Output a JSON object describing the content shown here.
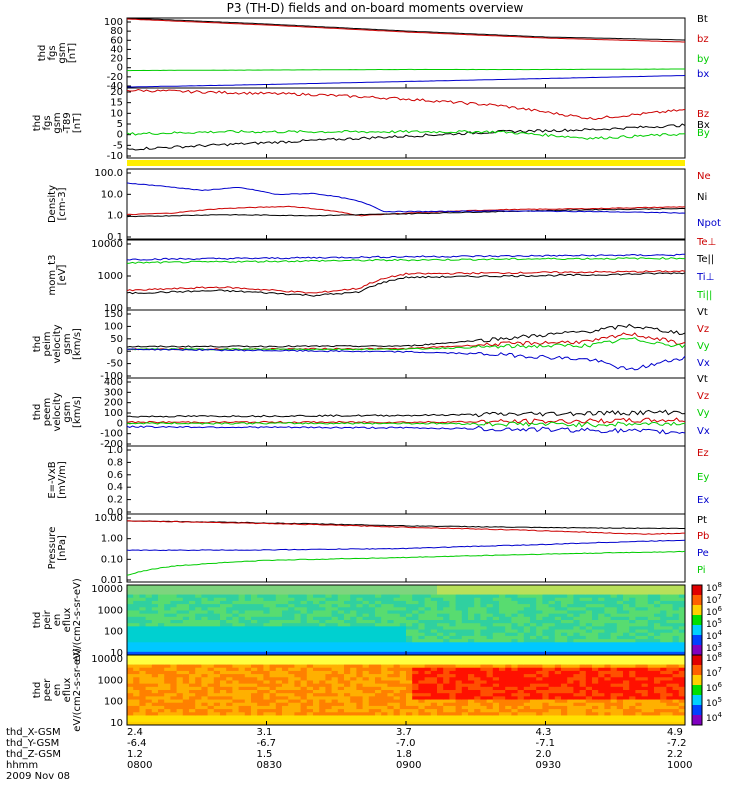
{
  "title": "P3 (TH-D) fields and on-board moments overview",
  "date_label": "2009 Nov 08",
  "colors": {
    "black": "#000000",
    "red": "#cc0000",
    "green": "#00cc00",
    "blue": "#0000cc",
    "yellow": "#ffee00",
    "cyan": "#00cccc"
  },
  "footer": {
    "rows": [
      {
        "label": "thd_X-GSM",
        "values": [
          "2.4",
          "3.1",
          "3.7",
          "4.3",
          "4.9"
        ]
      },
      {
        "label": "thd_Y-GSM",
        "values": [
          "-6.4",
          "-6.7",
          "-7.0",
          "-7.1",
          "-7.2"
        ]
      },
      {
        "label": "thd_Z-GSM",
        "values": [
          "1.2",
          "1.5",
          "1.8",
          "2.0",
          "2.2"
        ]
      },
      {
        "label": "hhmm",
        "values": [
          "0800",
          "0830",
          "0900",
          "0930",
          "1000"
        ]
      }
    ]
  },
  "chart_data": [
    {
      "type": "line",
      "ylabel": "thd fgs gsm [nT]",
      "ytick_labels": [
        "100",
        "80",
        "60",
        "40",
        "20",
        "0",
        "-20",
        "-40"
      ],
      "ylim": [
        -40,
        100
      ],
      "series": [
        {
          "name": "Bt",
          "color": "black",
          "x": [
            0,
            30,
            60,
            90,
            120
          ],
          "values": [
            100,
            88,
            74,
            62,
            56
          ]
        },
        {
          "name": "bz",
          "color": "red",
          "x": [
            0,
            30,
            60,
            90,
            120
          ],
          "values": [
            98,
            86,
            72,
            60,
            52
          ]
        },
        {
          "name": "by",
          "color": "green",
          "x": [
            0,
            30,
            60,
            90,
            120
          ],
          "values": [
            -5,
            -4,
            -3,
            -3,
            -2
          ]
        },
        {
          "name": "bx",
          "color": "blue",
          "x": [
            0,
            30,
            60,
            90,
            120
          ],
          "values": [
            -38,
            -33,
            -27,
            -21,
            -15
          ]
        }
      ]
    },
    {
      "type": "line",
      "ylabel": "thd fgs gsm -T89 [nT]",
      "ytick_labels": [
        "20",
        "15",
        "10",
        "5",
        "0",
        "-5",
        "-10"
      ],
      "ylim": [
        -12,
        20
      ],
      "series": [
        {
          "name": "Bz",
          "color": "red",
          "x": [
            0,
            20,
            40,
            60,
            80,
            100,
            120
          ],
          "values": [
            19,
            18,
            17,
            15,
            12,
            6,
            10
          ]
        },
        {
          "name": "Bx",
          "color": "black",
          "x": [
            0,
            20,
            40,
            60,
            80,
            100,
            120
          ],
          "values": [
            -8,
            -6,
            -4,
            -2,
            0,
            1,
            3
          ]
        },
        {
          "name": "By",
          "color": "green",
          "x": [
            0,
            20,
            40,
            60,
            80,
            100,
            120
          ],
          "values": [
            -1,
            0,
            0,
            0,
            0,
            -3,
            -1
          ]
        }
      ]
    },
    {
      "type": "line",
      "ylabel": "Density [cm-3]",
      "ytick_labels": [
        "100.0",
        "10.0",
        "1.0",
        "0.1"
      ],
      "ylim": [
        0.1,
        100
      ],
      "log": true,
      "series": [
        {
          "name": "Ne",
          "color": "red",
          "x": [
            0,
            10,
            20,
            35,
            50,
            65,
            80,
            100,
            120
          ],
          "values": [
            1.1,
            1.3,
            2,
            2.5,
            1.0,
            1.4,
            1.8,
            2.0,
            2.4
          ]
        },
        {
          "name": "Ni",
          "color": "black",
          "x": [
            0,
            20,
            40,
            60,
            80,
            100,
            120
          ],
          "values": [
            0.9,
            1.1,
            1.0,
            1.2,
            1.5,
            1.8,
            2.0
          ]
        },
        {
          "name": "Npot",
          "color": "blue",
          "x": [
            0,
            8,
            16,
            24,
            32,
            40,
            48,
            55,
            65,
            80,
            100,
            120
          ],
          "values": [
            25,
            18,
            12,
            16,
            8,
            9,
            5,
            1.5,
            1.5,
            1.6,
            1.5,
            1.3
          ]
        }
      ]
    },
    {
      "type": "line",
      "ylabel": "mom_t3 [eV]",
      "ytick_labels": [
        "10000",
        "1000",
        "100"
      ],
      "ylim": [
        30,
        10000
      ],
      "log": true,
      "series": [
        {
          "name": "Te⊥",
          "color": "red",
          "x": [
            0,
            20,
            40,
            50,
            60,
            80,
            100,
            120
          ],
          "values": [
            150,
            200,
            120,
            180,
            600,
            650,
            700,
            750
          ]
        },
        {
          "name": "Te||",
          "color": "black",
          "x": [
            0,
            20,
            40,
            50,
            60,
            80,
            100,
            120
          ],
          "values": [
            120,
            150,
            100,
            130,
            450,
            500,
            550,
            650
          ]
        },
        {
          "name": "Ti⊥",
          "color": "blue",
          "x": [
            0,
            30,
            60,
            90,
            120
          ],
          "values": [
            2000,
            2200,
            2500,
            2700,
            2900
          ]
        },
        {
          "name": "Ti||",
          "color": "green",
          "x": [
            0,
            30,
            60,
            90,
            120
          ],
          "values": [
            1500,
            1700,
            1900,
            2100,
            2200
          ]
        }
      ]
    },
    {
      "type": "line",
      "ylabel": "thd peim velocity gsm [km/s]",
      "ytick_labels": [
        "150",
        "100",
        "50",
        "0",
        "-50",
        "-100"
      ],
      "ylim": [
        -110,
        150
      ],
      "series": [
        {
          "name": "Vt",
          "color": "black",
          "x": [
            0,
            60,
            80,
            100,
            108,
            120
          ],
          "values": [
            10,
            12,
            40,
            70,
            90,
            60
          ]
        },
        {
          "name": "Vz",
          "color": "red",
          "x": [
            0,
            60,
            80,
            100,
            108,
            120
          ],
          "values": [
            0,
            2,
            20,
            30,
            60,
            20
          ]
        },
        {
          "name": "Vy",
          "color": "green",
          "x": [
            0,
            60,
            80,
            100,
            108,
            120
          ],
          "values": [
            0,
            0,
            10,
            15,
            40,
            10
          ]
        },
        {
          "name": "Vx",
          "color": "blue",
          "x": [
            0,
            60,
            80,
            100,
            108,
            120
          ],
          "values": [
            0,
            -10,
            -20,
            -40,
            -80,
            -30
          ]
        }
      ]
    },
    {
      "type": "line",
      "ylabel": "thd peem velocity gsm [km/s]",
      "ytick_labels": [
        "400",
        "300",
        "200",
        "100",
        "0",
        "-100",
        "-200"
      ],
      "ylim": [
        -200,
        400
      ],
      "series": [
        {
          "name": "Vt",
          "color": "black",
          "x": [
            0,
            60,
            100,
            120
          ],
          "values": [
            60,
            70,
            90,
            100
          ]
        },
        {
          "name": "Vz",
          "color": "red",
          "x": [
            0,
            60,
            100,
            120
          ],
          "values": [
            10,
            10,
            20,
            30
          ]
        },
        {
          "name": "Vy",
          "color": "green",
          "x": [
            0,
            60,
            100,
            120
          ],
          "values": [
            0,
            0,
            -10,
            0
          ]
        },
        {
          "name": "Vx",
          "color": "blue",
          "x": [
            0,
            60,
            100,
            120
          ],
          "values": [
            -30,
            -40,
            -60,
            -80
          ]
        }
      ]
    },
    {
      "type": "line",
      "ylabel": "E=-VxB [mV/m]",
      "ytick_labels": [
        "1.0",
        "0.8",
        "0.6",
        "0.4",
        "0.2",
        "0.0"
      ],
      "ylim": [
        0,
        1
      ],
      "series": [
        {
          "name": "Ez",
          "color": "red",
          "values": []
        },
        {
          "name": "Ey",
          "color": "green",
          "values": []
        },
        {
          "name": "Ex",
          "color": "blue",
          "values": []
        }
      ]
    },
    {
      "type": "line",
      "ylabel": "Pressure [nPa]",
      "ytick_labels": [
        "10.00",
        "1.00",
        "0.10",
        "0.01"
      ],
      "ylim": [
        0.01,
        10
      ],
      "log": true,
      "series": [
        {
          "name": "Pt",
          "color": "black",
          "x": [
            0,
            30,
            60,
            90,
            120
          ],
          "values": [
            5,
            4,
            3,
            2.5,
            2.3
          ]
        },
        {
          "name": "Pb",
          "color": "red",
          "x": [
            0,
            30,
            60,
            90,
            110,
            120
          ],
          "values": [
            5,
            3.8,
            2.6,
            1.8,
            1.3,
            1.4
          ]
        },
        {
          "name": "Pe",
          "color": "blue",
          "x": [
            0,
            30,
            60,
            90,
            120
          ],
          "values": [
            0.25,
            0.26,
            0.3,
            0.45,
            0.7
          ]
        },
        {
          "name": "Pi",
          "color": "green",
          "x": [
            0,
            10,
            30,
            60,
            90,
            120
          ],
          "values": [
            0.02,
            0.05,
            0.09,
            0.12,
            0.17,
            0.22
          ]
        }
      ]
    },
    {
      "type": "heatmap",
      "ylabel": "thd peir en eflux eV/(cm2-s-sr-eV)",
      "ytick_labels": [
        "10000",
        "1000",
        "100",
        "10"
      ],
      "ylim": [
        10,
        20000
      ],
      "colorbar_labels": [
        "10^8",
        "10^7",
        "10^6",
        "10^5",
        "10^4",
        "10^3"
      ]
    },
    {
      "type": "heatmap",
      "ylabel": "thd peer en eflux eV/(cm2-s-sr-eV)",
      "ytick_labels": [
        "10000",
        "1000",
        "100",
        "10"
      ],
      "ylim": [
        7,
        20000
      ],
      "colorbar_labels": [
        "10^8",
        "10^7",
        "10^6",
        "10^5",
        "10^4"
      ]
    }
  ]
}
